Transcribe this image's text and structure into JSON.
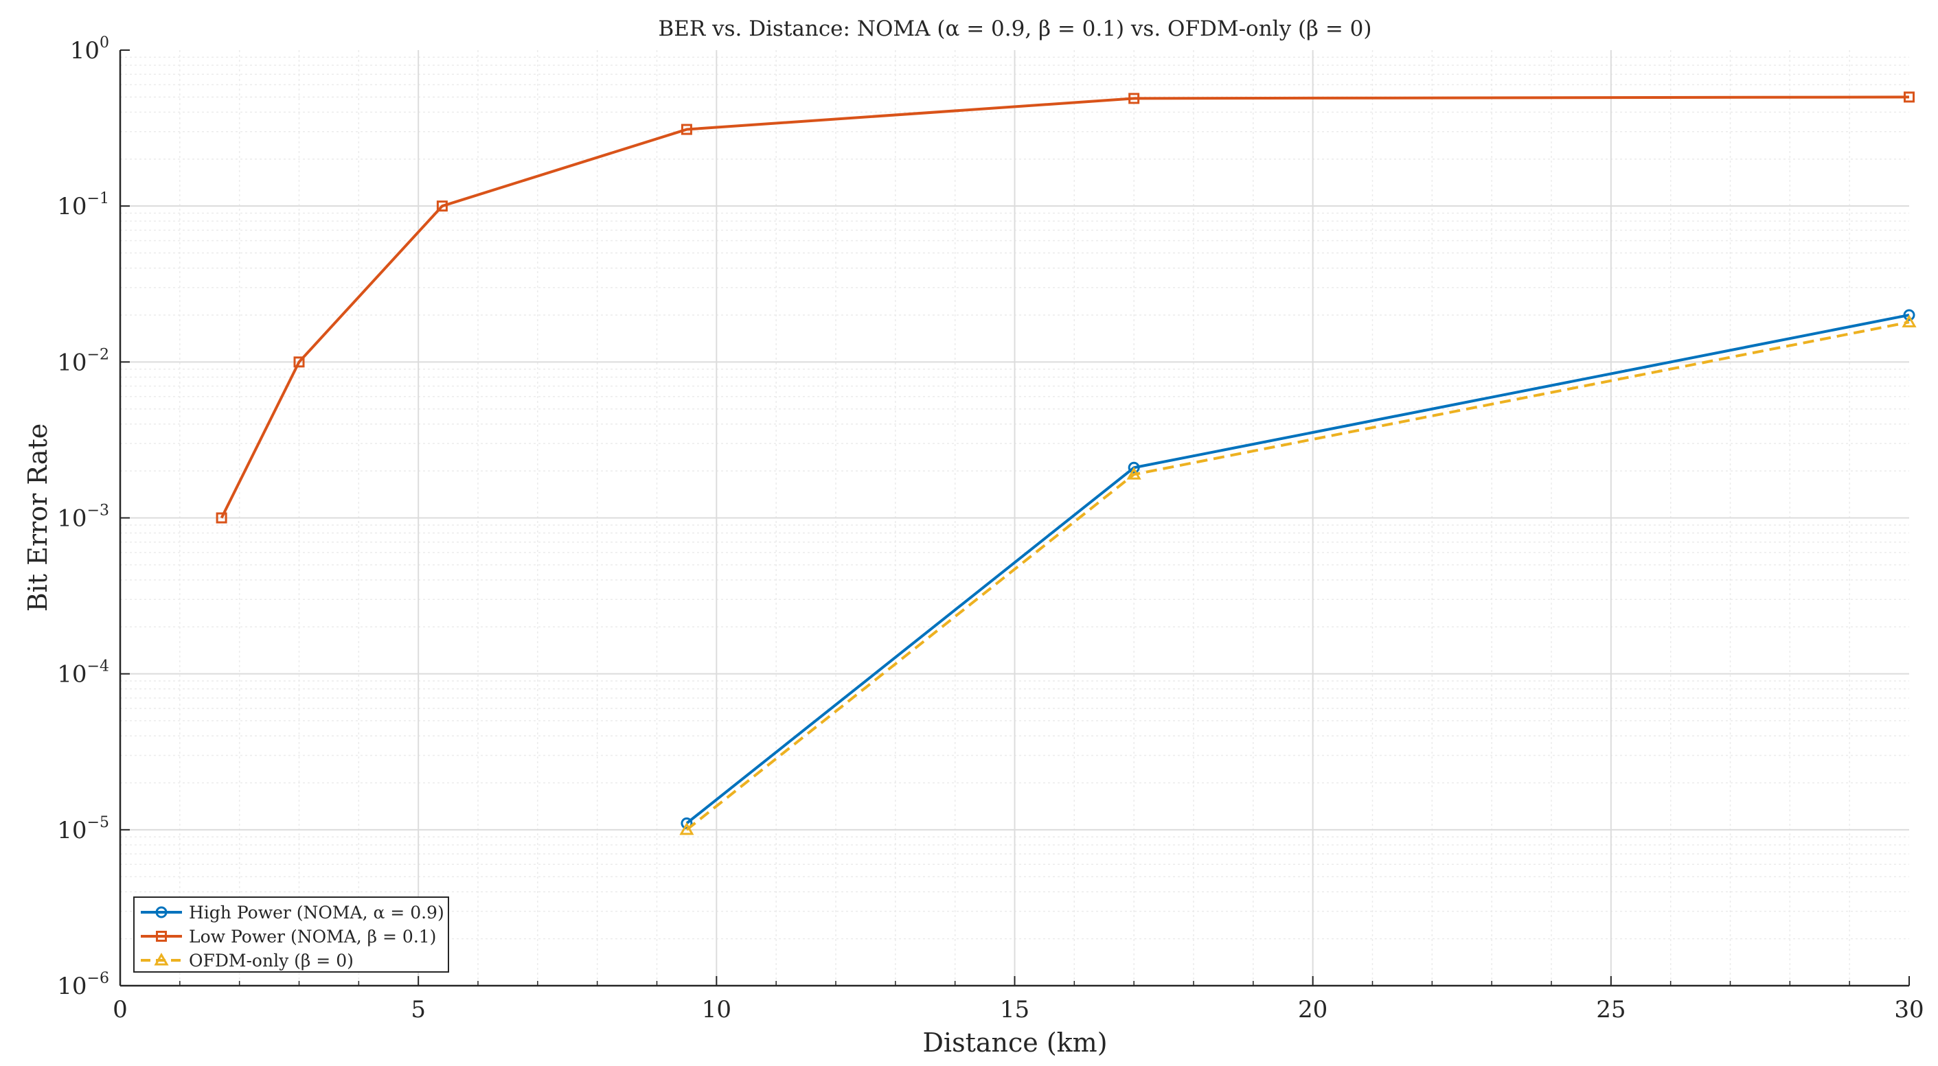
{
  "chart_data": {
    "type": "line",
    "title": "BER vs. Distance: NOMA (α = 0.9, β = 0.1) vs. OFDM-only (β = 0)",
    "xlabel": "Distance (km)",
    "ylabel": "Bit Error Rate",
    "xlim": [
      0,
      30
    ],
    "ylim": [
      1e-06,
      1
    ],
    "yscale": "log",
    "grid": true,
    "minor_grid": true,
    "legend_position": "bottom-left",
    "xticks": [
      "0",
      "5",
      "10",
      "15",
      "20",
      "25",
      "30"
    ],
    "yticks": [
      {
        "base": "10",
        "exp": "0"
      },
      {
        "base": "10",
        "exp": "−1"
      },
      {
        "base": "10",
        "exp": "−2"
      },
      {
        "base": "10",
        "exp": "−3"
      },
      {
        "base": "10",
        "exp": "−4"
      },
      {
        "base": "10",
        "exp": "−5"
      },
      {
        "base": "10",
        "exp": "−6"
      }
    ],
    "series": [
      {
        "name": "High Power (NOMA, α = 0.9)",
        "color": "#0072BD",
        "marker": "circle",
        "linestyle": "solid",
        "x": [
          9.5,
          17,
          30
        ],
        "y": [
          1.1e-05,
          0.0021,
          0.02
        ]
      },
      {
        "name": "Low Power (NOMA, β = 0.1)",
        "color": "#D95319",
        "marker": "square",
        "linestyle": "solid",
        "x": [
          1.7,
          3,
          5.4,
          9.5,
          17,
          30
        ],
        "y": [
          0.001,
          0.01,
          0.1,
          0.31,
          0.49,
          0.5
        ]
      },
      {
        "name": "OFDM-only (β = 0)",
        "color": "#EDB120",
        "marker": "triangle",
        "linestyle": "dashed",
        "x": [
          9.5,
          17,
          30
        ],
        "y": [
          1e-05,
          0.0019,
          0.018
        ]
      }
    ]
  }
}
